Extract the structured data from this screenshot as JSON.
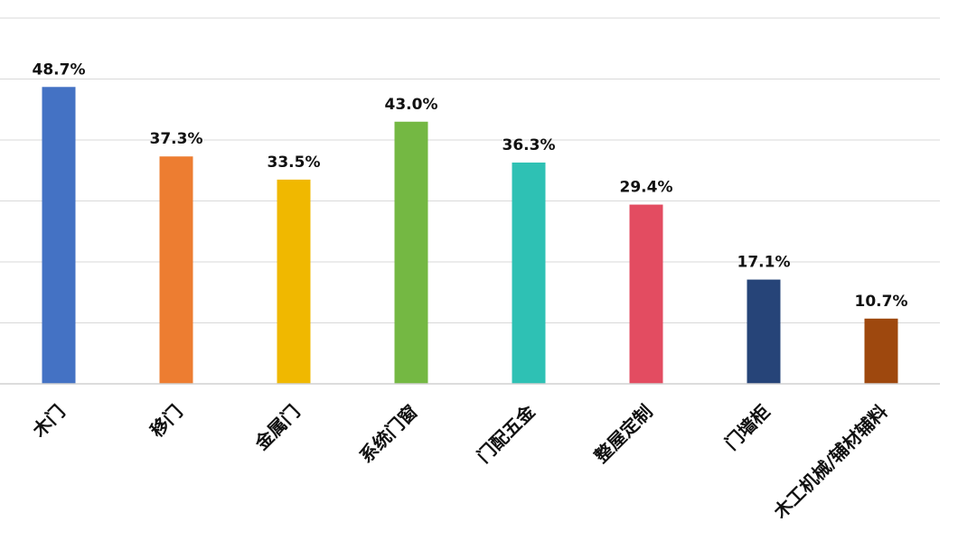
{
  "chart_data": {
    "type": "bar",
    "title": "",
    "xlabel": "",
    "ylabel": "",
    "categories": [
      "木门",
      "移门",
      "金属门",
      "系统门窗",
      "门配五金",
      "整屋定制",
      "门墙柜",
      "木工机械/辅材辅料"
    ],
    "values": [
      48.7,
      37.3,
      33.5,
      43.0,
      36.3,
      29.4,
      17.1,
      10.7
    ],
    "value_labels": [
      "48.7%",
      "37.3%",
      "33.5%",
      "43.0%",
      "36.3%",
      "29.4%",
      "17.1%",
      "10.7%"
    ],
    "colors": [
      "#4472C4",
      "#ED7D31",
      "#F0B800",
      "#74B843",
      "#2EC1B4",
      "#E34C61",
      "#264478",
      "#9E480E"
    ],
    "unit": "%",
    "ylim": [
      0,
      60
    ],
    "grid": true,
    "legend": "none"
  }
}
